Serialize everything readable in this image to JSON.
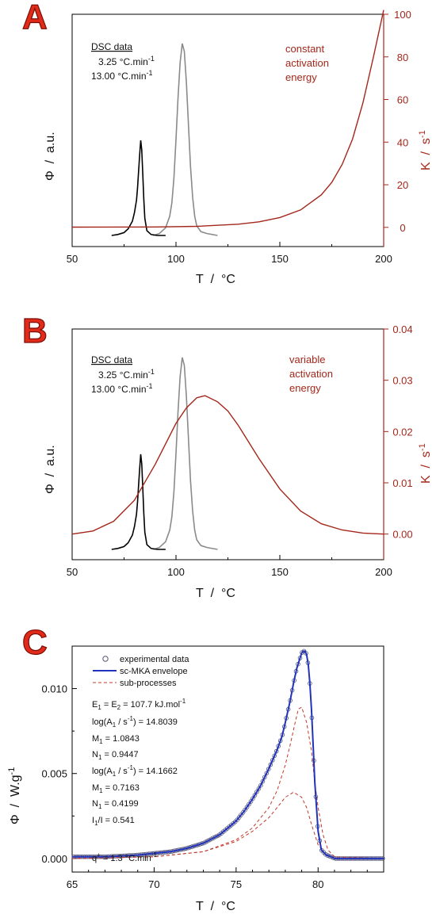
{
  "colors": {
    "black": "#000000",
    "gray": "#8a8a8a",
    "red": "#a3271b",
    "blue": "#2233bb",
    "dashed": "#c0392b",
    "exp": "#555577"
  },
  "chart_data": [
    {
      "panel": "A",
      "type": "line",
      "xlabel": "T / °C",
      "ylabel": "Φ / a.u.",
      "y2label": "K / s-1",
      "xlim": [
        50,
        200
      ],
      "xticks": [
        "50",
        "100",
        "150",
        "200"
      ],
      "y2lim": [
        -9,
        100
      ],
      "y2ticks": [
        "0",
        "20",
        "40",
        "60",
        "80",
        "100"
      ],
      "legend_title": "DSC data",
      "series": [
        {
          "name": "3.25 °C.min-1",
          "axis": "left",
          "x": [
            69,
            72,
            75,
            77,
            79,
            80,
            81,
            81.5,
            82,
            82.5,
            83,
            83.5,
            84,
            84.5,
            85,
            86,
            88,
            91,
            95
          ],
          "values": [
            0,
            0.01,
            0.03,
            0.07,
            0.15,
            0.24,
            0.37,
            0.5,
            0.67,
            0.85,
            1.0,
            0.9,
            0.65,
            0.38,
            0.18,
            0.05,
            0.01,
            0,
            0
          ]
        },
        {
          "name": "13.00 °C.min-1",
          "axis": "left",
          "x": [
            89,
            92,
            95,
            97,
            98,
            99,
            100,
            101,
            102,
            103,
            104,
            105,
            106,
            107,
            108,
            109,
            110,
            112,
            115,
            120
          ],
          "values": [
            0,
            0.01,
            0.04,
            0.1,
            0.17,
            0.3,
            0.5,
            0.72,
            0.9,
            1.0,
            0.96,
            0.8,
            0.58,
            0.36,
            0.2,
            0.1,
            0.05,
            0.02,
            0.01,
            0
          ]
        },
        {
          "name": "constant activation energy",
          "axis": "right",
          "x": [
            50,
            90,
            110,
            130,
            140,
            150,
            160,
            170,
            175,
            180,
            185,
            190,
            195,
            200
          ],
          "values": [
            0.1,
            0.2,
            0.5,
            1.5,
            2.6,
            4.6,
            8.2,
            15.3,
            21.1,
            29.5,
            41.4,
            58.4,
            79.7,
            102
          ]
        }
      ],
      "annotation": "constant\nactivation\nenergy"
    },
    {
      "panel": "B",
      "type": "line",
      "xlabel": "T / °C",
      "ylabel": "Φ / a.u.",
      "y2label": "K / s-1",
      "xlim": [
        50,
        200
      ],
      "xticks": [
        "50",
        "100",
        "150",
        "200"
      ],
      "y2lim": [
        -0.005,
        0.04
      ],
      "y2ticks": [
        "0.00",
        "0.01",
        "0.02",
        "0.03",
        "0.04"
      ],
      "legend_title": "DSC data",
      "series": [
        {
          "name": "3.25 °C.min-1",
          "axis": "left",
          "x": [
            69,
            72,
            75,
            77,
            79,
            80,
            81,
            81.5,
            82,
            82.5,
            83,
            83.5,
            84,
            84.5,
            85,
            86,
            88,
            91,
            95
          ],
          "values": [
            0,
            0.01,
            0.03,
            0.07,
            0.15,
            0.24,
            0.37,
            0.5,
            0.67,
            0.85,
            1.0,
            0.9,
            0.65,
            0.38,
            0.18,
            0.05,
            0.01,
            0,
            0
          ]
        },
        {
          "name": "13.00 °C.min-1",
          "axis": "left",
          "x": [
            89,
            92,
            95,
            97,
            98,
            99,
            100,
            101,
            102,
            103,
            104,
            105,
            106,
            107,
            108,
            109,
            110,
            112,
            115,
            120
          ],
          "values": [
            0,
            0.01,
            0.04,
            0.1,
            0.17,
            0.3,
            0.5,
            0.72,
            0.9,
            1.0,
            0.96,
            0.8,
            0.58,
            0.36,
            0.2,
            0.1,
            0.05,
            0.02,
            0.01,
            0
          ]
        },
        {
          "name": "variable activation energy",
          "axis": "right",
          "x": [
            50,
            60,
            70,
            80,
            90,
            100,
            105,
            110,
            114,
            120,
            125,
            130,
            140,
            150,
            160,
            170,
            180,
            190,
            200
          ],
          "values": [
            0.0,
            0.0006,
            0.0025,
            0.0066,
            0.0136,
            0.0216,
            0.0246,
            0.0266,
            0.027,
            0.0258,
            0.024,
            0.0212,
            0.0147,
            0.0088,
            0.0045,
            0.002,
            0.0008,
            0.0002,
            0.0
          ]
        }
      ],
      "annotation": "variable\nactivation\nenergy"
    },
    {
      "panel": "C",
      "type": "line",
      "xlabel": "T / °C",
      "ylabel": "Φ / W.g-1",
      "xlim": [
        65,
        84
      ],
      "xticks": [
        "65",
        "70",
        "75",
        "80"
      ],
      "ylim": [
        -0.0008,
        0.0125
      ],
      "yticks": [
        "0.000",
        "0.005",
        "0.010"
      ],
      "legend": [
        "experimental data",
        "sc-MKA envelope",
        "sub-processes"
      ],
      "series": [
        {
          "name": "experimental data",
          "x": [
            65,
            67,
            69,
            70,
            71,
            72,
            73,
            74,
            74.5,
            75,
            75.5,
            76,
            76.5,
            77,
            77.5,
            77.8,
            78,
            78.3,
            78.5,
            78.7,
            78.9,
            79,
            79.1,
            79.2,
            79.3,
            79.4,
            79.5,
            79.6,
            79.7,
            79.8,
            80,
            80.2,
            80.5,
            80.8,
            81,
            82,
            83,
            84
          ],
          "values": [
            0.0001,
            0.0001,
            0.0002,
            0.0003,
            0.0004,
            0.0006,
            0.0009,
            0.0014,
            0.0018,
            0.0022,
            0.0028,
            0.0035,
            0.0043,
            0.0053,
            0.0064,
            0.0072,
            0.008,
            0.0093,
            0.0103,
            0.0112,
            0.0118,
            0.0121,
            0.0122,
            0.0122,
            0.012,
            0.0114,
            0.0103,
            0.0087,
            0.0066,
            0.0045,
            0.0016,
            0.0005,
            0.0002,
            0.0001,
            0.0,
            0.0,
            0.0,
            0.0
          ]
        },
        {
          "name": "sc-MKA envelope",
          "x": [
            65,
            67,
            69,
            70,
            71,
            72,
            73,
            74,
            74.5,
            75,
            75.5,
            76,
            76.5,
            77,
            77.5,
            77.8,
            78,
            78.3,
            78.5,
            78.7,
            78.9,
            79,
            79.1,
            79.2,
            79.3,
            79.4,
            79.5,
            79.6,
            79.7,
            79.8,
            80,
            80.2,
            80.5,
            80.8,
            81,
            82,
            83,
            84
          ],
          "values": [
            0.0001,
            0.0001,
            0.0002,
            0.0003,
            0.0004,
            0.0006,
            0.0009,
            0.0014,
            0.0018,
            0.0022,
            0.0028,
            0.0035,
            0.0043,
            0.0053,
            0.0064,
            0.0072,
            0.008,
            0.0093,
            0.0103,
            0.0112,
            0.0118,
            0.0121,
            0.0122,
            0.0122,
            0.012,
            0.0114,
            0.0103,
            0.0087,
            0.0066,
            0.0045,
            0.0016,
            0.0005,
            0.0002,
            0.0001,
            0.0,
            0.0,
            0.0,
            0.0
          ]
        },
        {
          "name": "sub-processes",
          "x": [
            65,
            70,
            73,
            75,
            76,
            77,
            77.5,
            78,
            78.5,
            79,
            79.3,
            79.6,
            80,
            80.5,
            81,
            84
          ],
          "values": [
            0,
            0.0001,
            0.0004,
            0.001,
            0.0016,
            0.0024,
            0.003,
            0.0036,
            0.0039,
            0.0036,
            0.003,
            0.002,
            0.0008,
            0.0002,
            0.0,
            0
          ]
        },
        {
          "name": "sub-processes",
          "x": [
            65,
            70,
            73,
            75,
            76,
            77,
            77.5,
            78,
            78.3,
            78.6,
            78.8,
            79,
            79.3,
            79.6,
            79.8,
            80,
            80.3,
            80.6,
            81,
            84
          ],
          "values": [
            0,
            0.0001,
            0.0004,
            0.0011,
            0.0018,
            0.003,
            0.004,
            0.0055,
            0.0067,
            0.008,
            0.0088,
            0.0089,
            0.008,
            0.0063,
            0.0045,
            0.003,
            0.0014,
            0.0005,
            0.0001,
            0
          ]
        }
      ],
      "params": [
        "E1 = E2 = 107.7 kJ.mol-1",
        "log(A1 / s-1) = 14.8039",
        "M1 = 1.0843",
        "N1 = 0.9447",
        "log(A1 / s-1) = 14.1662",
        "M1 = 0.7163",
        "N1 = 0.4199",
        "I1/I = 0.541"
      ],
      "rate": "q+ = 1.3 °C.min-1"
    }
  ]
}
